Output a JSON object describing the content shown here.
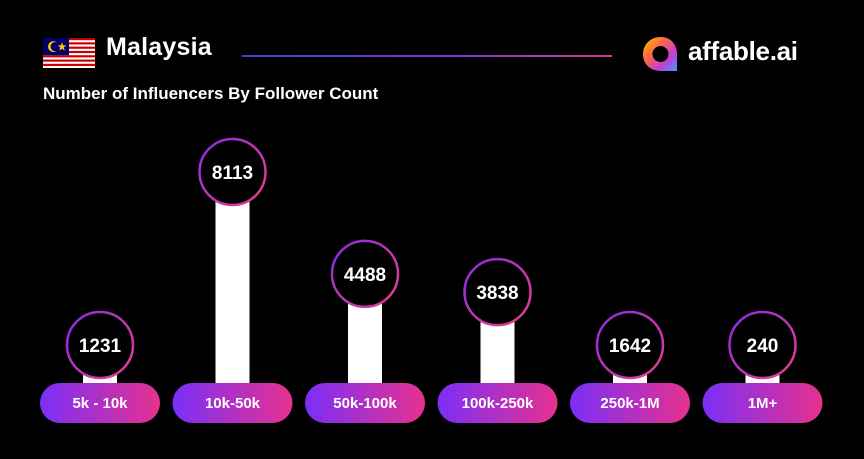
{
  "header": {
    "country": "Malaysia",
    "flag_icon": "malaysia-flag-icon",
    "logo_text": "affable.ai",
    "logo_icon": "affable-logo-icon"
  },
  "colors": {
    "background": "#000000",
    "bar": "#ffffff",
    "pill_start": "#7b2ff7",
    "pill_end": "#e6318f",
    "ring_start": "#8a2be2",
    "ring_end": "#e83e8c",
    "accent_line": "#5a3fd0"
  },
  "chart_data": {
    "type": "bar",
    "title": "Number of Influencers By Follower Count",
    "categories": [
      "5k - 10k",
      "10k-50k",
      "50k-100k",
      "100k-250k",
      "250k-1M",
      "1M+"
    ],
    "values": [
      1231,
      8113,
      4488,
      3838,
      1642,
      240
    ],
    "xlabel": "",
    "ylabel": "",
    "grid": false,
    "legend": "none"
  }
}
